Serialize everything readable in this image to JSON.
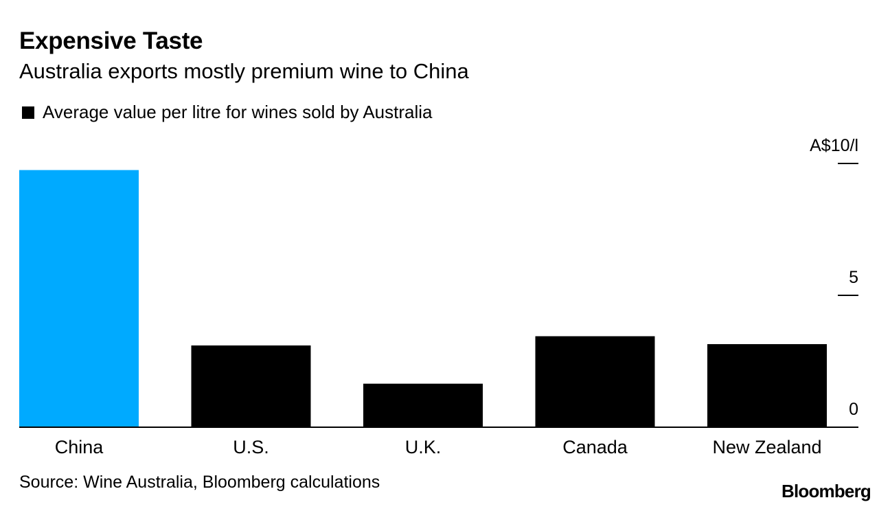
{
  "header": {
    "title": "Expensive Taste",
    "subtitle": "Australia exports mostly premium wine to China"
  },
  "legend": {
    "label": "Average value per litre for wines sold by Australia",
    "color": "#000000"
  },
  "footer": {
    "source": "Source: Wine Australia, Bloomberg calculations",
    "brand": "Bloomberg"
  },
  "colors": {
    "highlight": "#00AAFF",
    "default": "#000000"
  },
  "chart_data": {
    "type": "bar",
    "title": "Expensive Taste",
    "subtitle": "Australia exports mostly premium wine to China",
    "categories": [
      "China",
      "U.S.",
      "U.K.",
      "Canada",
      "New Zealand"
    ],
    "values": [
      9.75,
      3.1,
      1.65,
      3.45,
      3.15
    ],
    "highlight_index": 0,
    "ylim": [
      0,
      10
    ],
    "yticks": [
      {
        "value": 0,
        "label": "0"
      },
      {
        "value": 5,
        "label": "5"
      },
      {
        "value": 10,
        "label": "A$10/l"
      }
    ],
    "xlabel": "",
    "ylabel": "",
    "legend": "Average value per litre for wines sold by Australia",
    "grid": false
  }
}
